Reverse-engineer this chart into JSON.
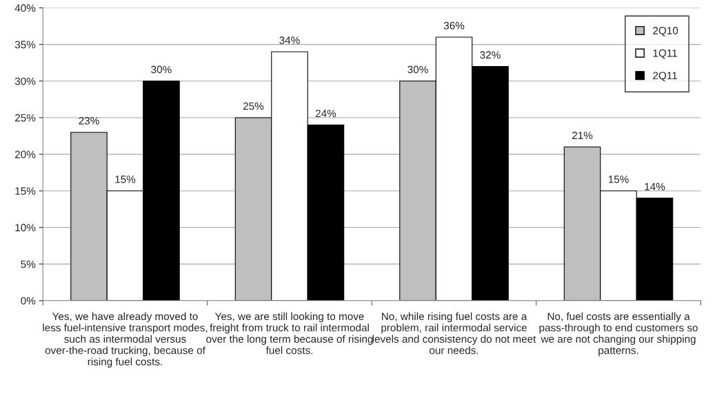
{
  "chart_data": {
    "type": "bar",
    "categories": [
      "Yes, we have already moved to less fuel-intensive transport modes, such as intermodal versus over-the-road trucking, because of rising fuel costs.",
      "Yes, we are still looking to move freight from truck to rail intermodal over the long term because of rising fuel costs.",
      "No, while rising fuel costs are a problem, rail intermodal service levels and consistency do not meet our needs.",
      "No, fuel costs are essentially a pass-through to end customers so we are not changing our shipping patterns."
    ],
    "series": [
      {
        "name": "2Q10",
        "color": "#bfbfbf",
        "values": [
          23,
          25,
          30,
          21
        ],
        "value_labels": [
          "23%",
          "25%",
          "30%",
          "21%"
        ]
      },
      {
        "name": "1Q11",
        "color": "#ffffff",
        "values": [
          15,
          34,
          36,
          15
        ],
        "value_labels": [
          "15%",
          "34%",
          "36%",
          "15%"
        ]
      },
      {
        "name": "2Q11",
        "color": "#000000",
        "values": [
          30,
          24,
          32,
          14
        ],
        "value_labels": [
          "30%",
          "24%",
          "32%",
          "14%"
        ]
      }
    ],
    "ylim": [
      0,
      40
    ],
    "yticks": [
      {
        "value": 0,
        "label": "0%"
      },
      {
        "value": 5,
        "label": "5%"
      },
      {
        "value": 10,
        "label": "10%"
      },
      {
        "value": 15,
        "label": "15%"
      },
      {
        "value": 20,
        "label": "20%"
      },
      {
        "value": 25,
        "label": "25%"
      },
      {
        "value": 30,
        "label": "30%"
      },
      {
        "value": 35,
        "label": "35%"
      },
      {
        "value": 40,
        "label": "40%"
      }
    ],
    "grid": "y",
    "legend": "top right"
  }
}
